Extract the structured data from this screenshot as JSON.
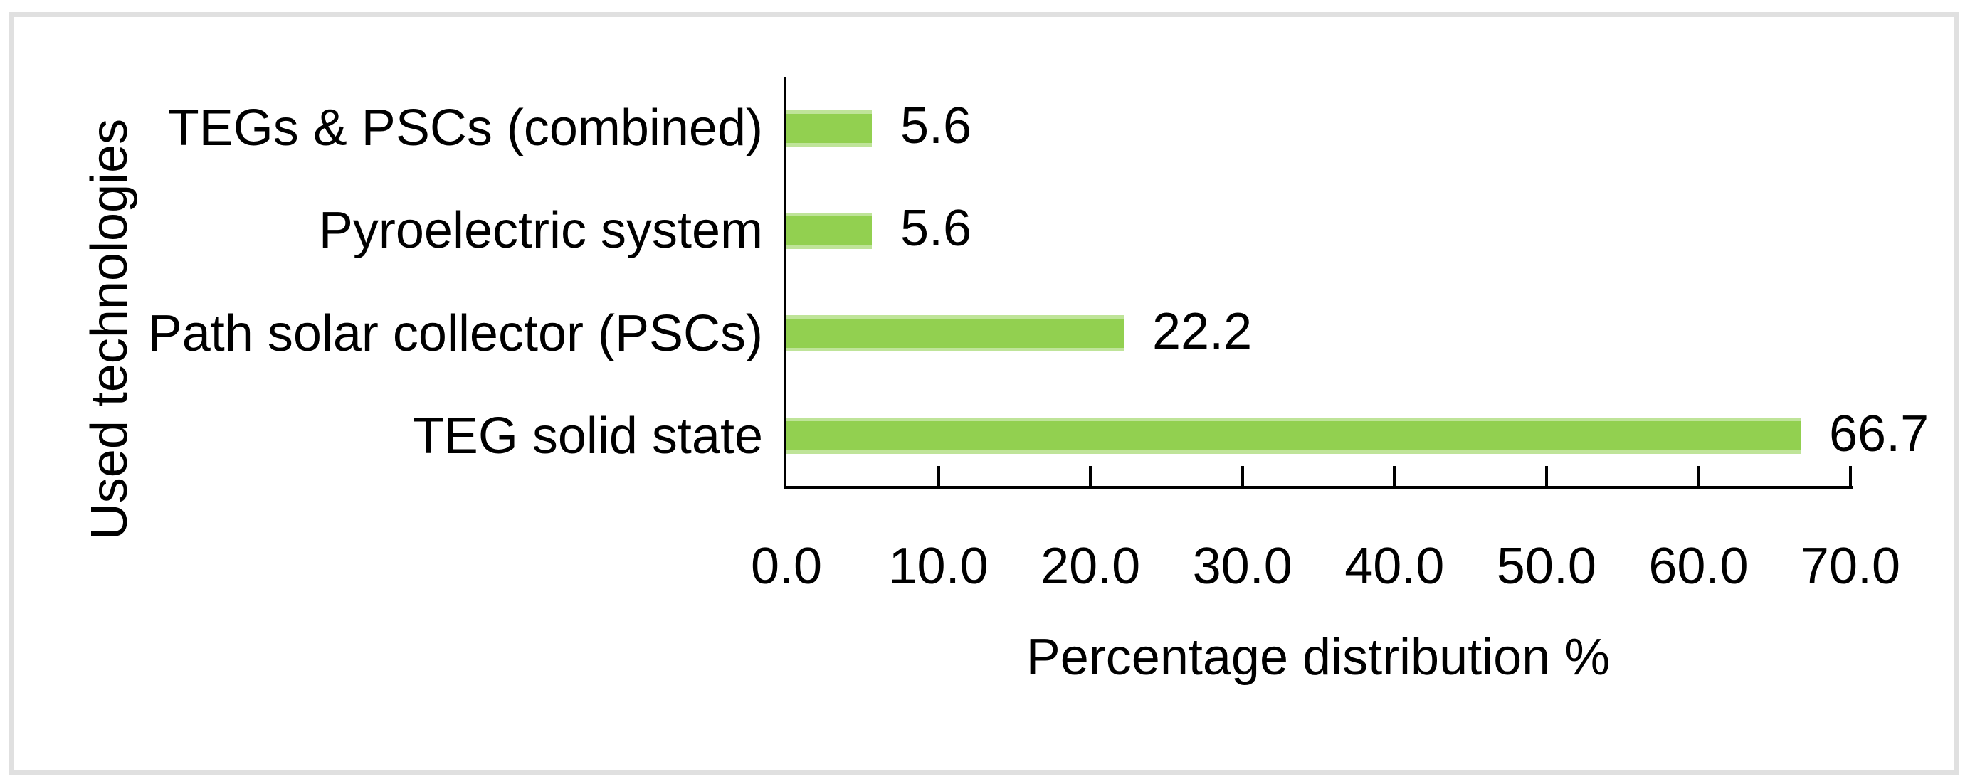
{
  "chart_data": {
    "type": "bar",
    "orientation": "horizontal",
    "title": "",
    "categories": [
      "TEGs & PSCs (combined)",
      "Pyroelectric system",
      "Path solar collector (PSCs)",
      "TEG solid state"
    ],
    "values": [
      5.6,
      5.6,
      22.2,
      66.7
    ],
    "value_labels": [
      "5.6",
      "5.6",
      "22.2",
      "66.7"
    ],
    "xlabel": "Percentage distribution %",
    "ylabel": "Used technologies",
    "xlim": [
      0,
      70
    ],
    "xticks": [
      0,
      10,
      20,
      30,
      40,
      50,
      60,
      70
    ],
    "xtick_labels": [
      "0.0",
      "10.0",
      "20.0",
      "30.0",
      "40.0",
      "50.0",
      "60.0",
      "70.0"
    ],
    "grid": false,
    "legend_position": "none",
    "colors": {
      "bar": "#92D050",
      "axis": "#000000",
      "text": "#000000",
      "frame_border": "#E0E0E0",
      "background": "#FFFFFF"
    }
  }
}
